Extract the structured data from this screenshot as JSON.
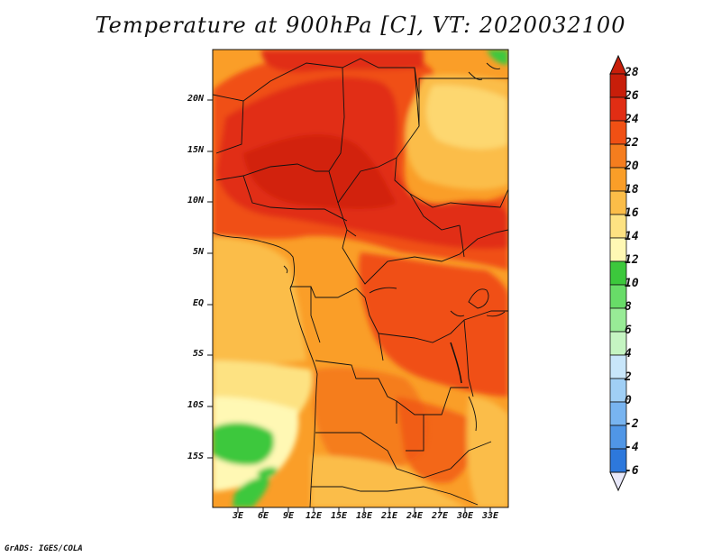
{
  "title": "Temperature at 900hPa [C], VT: 2020032100",
  "credit": "GrADS: IGES/COLA",
  "lat_labels": [
    "20N",
    "15N",
    "10N",
    "5N",
    "EQ",
    "5S",
    "10S",
    "15S"
  ],
  "lon_labels": [
    "3E",
    "6E",
    "9E",
    "12E",
    "15E",
    "18E",
    "21E",
    "24E",
    "27E",
    "30E",
    "33E"
  ],
  "colorbar": {
    "labels": [
      "28",
      "26",
      "24",
      "22",
      "20",
      "18",
      "16",
      "14",
      "12",
      "10",
      "8",
      "6",
      "4",
      "2",
      "0",
      "-2",
      "-4",
      "-6"
    ],
    "colors": [
      "#c81e0a",
      "#e12d14",
      "#f05014",
      "#f57d1e",
      "#fa9e28",
      "#fbbd48",
      "#fde282",
      "#fff8b4",
      "#3cc83c",
      "#68dc68",
      "#98eb96",
      "#c5f5c2",
      "#c8e6fa",
      "#a0cff5",
      "#78b4f0",
      "#5096e6",
      "#2d78dc",
      "#1e5ac8",
      "#143cb4",
      "#0a1e8c"
    ],
    "top_triangle_color": "#c81e0a",
    "bottom_triangle_color": "#e8e8fa"
  }
}
